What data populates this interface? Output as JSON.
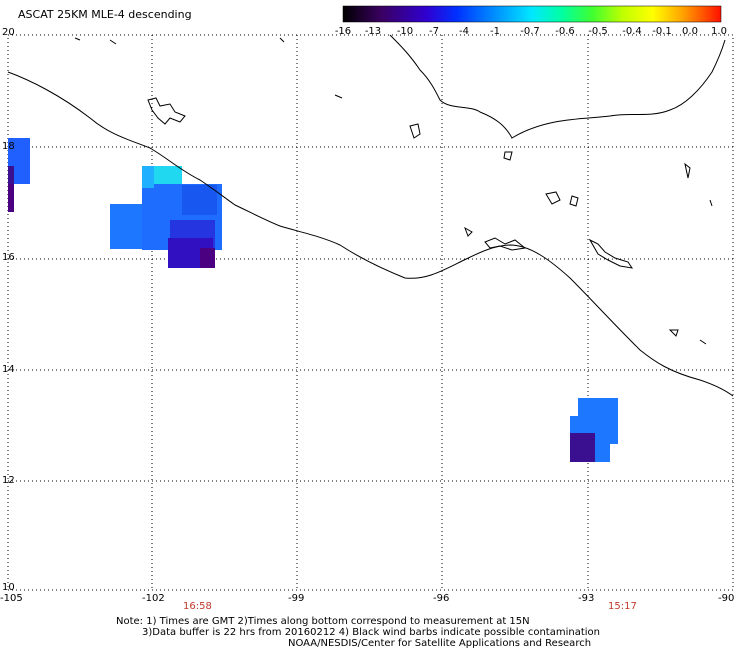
{
  "title": "ASCAT 25KM MLE-4 descending",
  "colorbar": {
    "labels": [
      "-16",
      "-13",
      "-10",
      "-7",
      "-4",
      "-1",
      "-0.7",
      "-0.6",
      "-0.5",
      "-0.4",
      "-0.1",
      "0.0",
      "1.0"
    ],
    "colors": [
      "#000000",
      "#4b0082",
      "#1e00ff",
      "#0050ff",
      "#00a0ff",
      "#00e6ff",
      "#00ffb0",
      "#40ff40",
      "#a0ff00",
      "#ffff00",
      "#ffb000",
      "#ff6000",
      "#ff0000"
    ]
  },
  "axes": {
    "lon_labels": [
      "-105",
      "-102",
      "-99",
      "-96",
      "-93",
      "-90"
    ],
    "lat_labels": [
      "20",
      "18",
      "16",
      "14",
      "12",
      "10"
    ]
  },
  "times": {
    "left": "16:58",
    "right": "15:17"
  },
  "notes": {
    "line1": "Note: 1) Times are GMT 2)Times along bottom correspond to measurement at 15N",
    "line2": "3)Data buffer is 22 hrs from 20160212 4) Black wind barbs indicate possible contamination",
    "line3": "NOAA/NESDIS/Center for Satellite Applications and Research"
  }
}
